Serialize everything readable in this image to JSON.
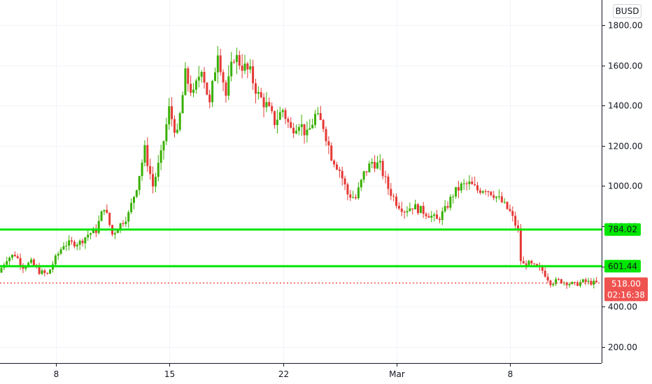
{
  "chart_data": {
    "type": "candlestick",
    "title": "",
    "quote_currency": "BUSD",
    "ylim": [
      120,
      1925
    ],
    "y_ticks": [
      200,
      400,
      600,
      800,
      1000,
      1200,
      1400,
      1600,
      1800
    ],
    "y_tick_labels": [
      "200.00",
      "400.00",
      "600.00",
      "800.00",
      "1000.00",
      "1200.00",
      "1400.00",
      "1600.00",
      "1800.00"
    ],
    "x_ticks": [
      {
        "label": "8",
        "date": "Feb 8"
      },
      {
        "label": "15",
        "date": "Feb 15"
      },
      {
        "label": "22",
        "date": "Feb 22"
      },
      {
        "label": "Mar",
        "date": "Mar 1"
      },
      {
        "label": "8",
        "date": "Mar 8"
      }
    ],
    "horizontal_levels": [
      {
        "value": 784.02,
        "label": "784.02",
        "color": "#00e600"
      },
      {
        "value": 601.44,
        "label": "601.44",
        "color": "#00e600"
      }
    ],
    "last_price": {
      "value": 518.0,
      "label": "518.00",
      "countdown": "02:16:38",
      "color": "#ef5350"
    },
    "colors": {
      "up": "#26a69a",
      "down": "#ef5350",
      "up_candle": "#38b000",
      "down_candle": "#e53935"
    },
    "price_path": [
      [
        0,
        570
      ],
      [
        0.5,
        640
      ],
      [
        1.0,
        660
      ],
      [
        1.5,
        600
      ],
      [
        2.0,
        620
      ],
      [
        2.5,
        575
      ],
      [
        3.0,
        560
      ],
      [
        3.5,
        640
      ],
      [
        4.0,
        710
      ],
      [
        5.0,
        720
      ],
      [
        5.5,
        760
      ],
      [
        6.0,
        780
      ],
      [
        6.5,
        900
      ],
      [
        7.0,
        760
      ],
      [
        7.5,
        810
      ],
      [
        8.0,
        860
      ],
      [
        8.5,
        1000
      ],
      [
        9.0,
        1180
      ],
      [
        9.5,
        1000
      ],
      [
        10.0,
        1150
      ],
      [
        10.5,
        1380
      ],
      [
        11.0,
        1250
      ],
      [
        11.5,
        1550
      ],
      [
        12.0,
        1450
      ],
      [
        12.5,
        1600
      ],
      [
        13.0,
        1400
      ],
      [
        13.5,
        1680
      ],
      [
        14.0,
        1450
      ],
      [
        14.5,
        1650
      ],
      [
        15.0,
        1600
      ],
      [
        15.5,
        1560
      ],
      [
        16.0,
        1450
      ],
      [
        16.5,
        1400
      ],
      [
        17.0,
        1320
      ],
      [
        17.5,
        1380
      ],
      [
        18.0,
        1280
      ],
      [
        18.5,
        1320
      ],
      [
        19.0,
        1250
      ],
      [
        19.5,
        1350
      ],
      [
        20.0,
        1300
      ],
      [
        20.5,
        1150
      ],
      [
        21.0,
        1080
      ],
      [
        21.5,
        960
      ],
      [
        22.0,
        940
      ],
      [
        22.5,
        1060
      ],
      [
        23.0,
        1120
      ],
      [
        23.5,
        1100
      ],
      [
        24.0,
        990
      ],
      [
        24.5,
        920
      ],
      [
        25.0,
        880
      ],
      [
        25.5,
        900
      ],
      [
        26.0,
        880
      ],
      [
        26.5,
        860
      ],
      [
        27.0,
        830
      ],
      [
        27.5,
        880
      ],
      [
        28.0,
        960
      ],
      [
        28.5,
        1000
      ],
      [
        29.0,
        1010
      ],
      [
        29.5,
        980
      ],
      [
        30.0,
        990
      ],
      [
        30.5,
        960
      ],
      [
        31.0,
        920
      ],
      [
        31.5,
        870
      ],
      [
        32.0,
        780
      ],
      [
        32.2,
        600
      ],
      [
        32.5,
        620
      ],
      [
        33.0,
        600
      ],
      [
        33.5,
        580
      ],
      [
        34.0,
        520
      ],
      [
        34.5,
        530
      ],
      [
        35.0,
        520
      ],
      [
        35.5,
        510
      ],
      [
        36.0,
        525
      ],
      [
        36.7,
        518
      ]
    ]
  }
}
